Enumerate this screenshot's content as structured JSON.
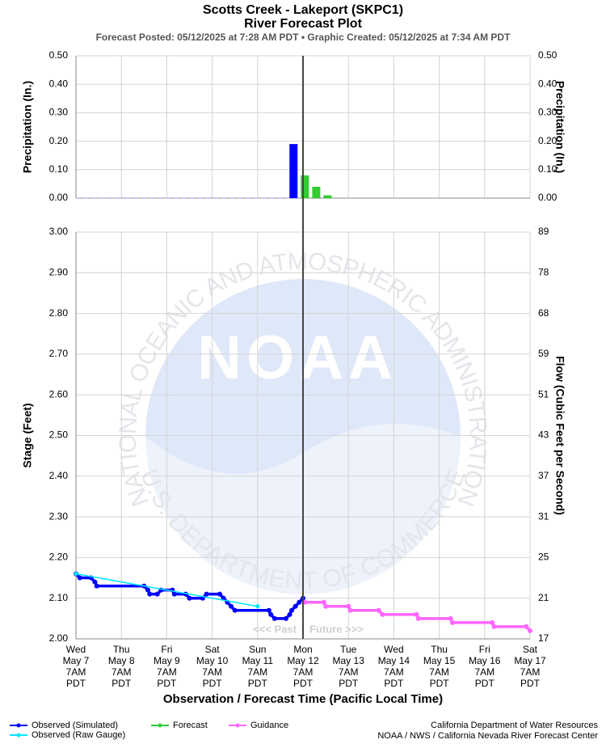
{
  "header": {
    "title": "Scotts Creek - Lakeport (SKPC1)",
    "subtitle": "River Forecast Plot",
    "posted": "Forecast Posted: 05/12/2025 at 7:28 AM PDT  •  Graphic Created: 05/12/2025 at 7:34 AM PDT"
  },
  "watermark": {
    "logo": "NOAA",
    "ring_top": "NATIONAL OCEANIC AND ATMOSPHERIC ADMINISTRATION",
    "ring_bottom": "U.S. DEPARTMENT OF COMMERCE"
  },
  "chart_data": [
    {
      "type": "bar",
      "ylabel": "Precipitation (In.)",
      "y2label": "Precipitation (In.)",
      "xlim": [
        "2025-05-07T07:00",
        "2025-05-17T07:00"
      ],
      "ylim": [
        0,
        0.5
      ],
      "yticks": [
        {
          "value": 0,
          "label": "0.00"
        },
        {
          "value": 0.1,
          "label": "0.10"
        },
        {
          "value": 0.2,
          "label": "0.20"
        },
        {
          "value": 0.3,
          "label": "0.30"
        },
        {
          "value": 0.4,
          "label": "0.40"
        },
        {
          "value": 0.5,
          "label": "0.50"
        }
      ],
      "grid": true,
      "series": [
        {
          "color": "#0000ff",
          "x": [
            "2025-05-12T02:00"
          ],
          "values": [
            0.19
          ]
        },
        {
          "name": "Forecast",
          "color": "#33cc33",
          "x": [
            "2025-05-12T08:00",
            "2025-05-12T14:00",
            "2025-05-12T20:00"
          ],
          "values": [
            0.08,
            0.04,
            0.01
          ]
        }
      ]
    },
    {
      "type": "line",
      "ylabel": "Stage (Feet)",
      "y2label": "Flow (Cubic Feet per Second)",
      "xlabel": "Observation / Forecast Time (Pacific Local Time)",
      "now": "2025-05-12T07:00",
      "past_label": "<<< Past",
      "future_label": "Future >>>",
      "xlim": [
        "2025-05-07T07:00",
        "2025-05-17T07:00"
      ],
      "xticks": [
        {
          "value": "2025-05-07T07:00",
          "label": [
            "Wed",
            "May 7",
            "7AM",
            "PDT"
          ]
        },
        {
          "value": "2025-05-08T07:00",
          "label": [
            "Thu",
            "May 8",
            "7AM",
            "PDT"
          ]
        },
        {
          "value": "2025-05-09T07:00",
          "label": [
            "Fri",
            "May 9",
            "7AM",
            "PDT"
          ]
        },
        {
          "value": "2025-05-10T07:00",
          "label": [
            "Sat",
            "May 10",
            "7AM",
            "PDT"
          ]
        },
        {
          "value": "2025-05-11T07:00",
          "label": [
            "Sun",
            "May 11",
            "7AM",
            "PDT"
          ]
        },
        {
          "value": "2025-05-12T07:00",
          "label": [
            "Mon",
            "May 12",
            "7AM",
            "PDT"
          ]
        },
        {
          "value": "2025-05-13T07:00",
          "label": [
            "Tue",
            "May 13",
            "7AM",
            "PDT"
          ]
        },
        {
          "value": "2025-05-14T07:00",
          "label": [
            "Wed",
            "May 14",
            "7AM",
            "PDT"
          ]
        },
        {
          "value": "2025-05-15T07:00",
          "label": [
            "Thu",
            "May 15",
            "7AM",
            "PDT"
          ]
        },
        {
          "value": "2025-05-16T07:00",
          "label": [
            "Fri",
            "May 16",
            "7AM",
            "PDT"
          ]
        },
        {
          "value": "2025-05-17T07:00",
          "label": [
            "Sat",
            "May 17",
            "7AM",
            "PDT"
          ]
        }
      ],
      "ylim": [
        2,
        3
      ],
      "yticks": [
        {
          "value": 2,
          "label": "2.00"
        },
        {
          "value": 2.1,
          "label": "2.10"
        },
        {
          "value": 2.2,
          "label": "2.20"
        },
        {
          "value": 2.3,
          "label": "2.30"
        },
        {
          "value": 2.4,
          "label": "2.40"
        },
        {
          "value": 2.5,
          "label": "2.50"
        },
        {
          "value": 2.6,
          "label": "2.60"
        },
        {
          "value": 2.7,
          "label": "2.70"
        },
        {
          "value": 2.8,
          "label": "2.80"
        },
        {
          "value": 2.9,
          "label": "2.90"
        },
        {
          "value": 3,
          "label": "3.00"
        }
      ],
      "y2lim": [
        17,
        89
      ],
      "y2ticks": [
        17,
        21,
        25,
        31,
        37,
        43,
        51,
        59,
        68,
        78,
        89
      ],
      "grid": true,
      "series": [
        {
          "name": "Observed (Simulated)",
          "color": "#0000ff",
          "x": [
            "2025-05-07T07:00",
            "2025-05-07T09:00",
            "2025-05-07T15:00",
            "2025-05-07T17:00",
            "2025-05-07T18:00",
            "2025-05-08T19:00",
            "2025-05-08T21:00",
            "2025-05-08T22:00",
            "2025-05-09T02:00",
            "2025-05-09T04:00",
            "2025-05-09T10:00",
            "2025-05-09T11:00",
            "2025-05-09T17:00",
            "2025-05-09T19:00",
            "2025-05-10T02:00",
            "2025-05-10T04:00",
            "2025-05-10T11:00",
            "2025-05-10T13:00",
            "2025-05-10T15:00",
            "2025-05-10T17:00",
            "2025-05-10T19:00",
            "2025-05-11T13:00",
            "2025-05-11T14:00",
            "2025-05-11T16:00",
            "2025-05-11T22:00",
            "2025-05-12T00:00",
            "2025-05-12T01:00",
            "2025-05-12T03:00",
            "2025-05-12T05:00",
            "2025-05-12T07:00"
          ],
          "values": [
            2.16,
            2.15,
            2.15,
            2.14,
            2.13,
            2.13,
            2.12,
            2.11,
            2.11,
            2.12,
            2.12,
            2.11,
            2.11,
            2.1,
            2.1,
            2.11,
            2.11,
            2.1,
            2.09,
            2.08,
            2.07,
            2.07,
            2.06,
            2.05,
            2.05,
            2.06,
            2.07,
            2.08,
            2.09,
            2.1
          ]
        },
        {
          "name": "Observed (Raw Gauge)",
          "color": "#00e5ff",
          "x": [
            "2025-05-07T07:00",
            "2025-05-11T07:00"
          ],
          "values": [
            2.16,
            2.08
          ]
        },
        {
          "name": "Guidance",
          "color": "#ff66ff",
          "x": [
            "2025-05-12T08:00",
            "2025-05-12T18:00",
            "2025-05-12T19:00",
            "2025-05-13T07:00",
            "2025-05-13T08:00",
            "2025-05-13T23:00",
            "2025-05-14T01:00",
            "2025-05-14T19:00",
            "2025-05-14T20:00",
            "2025-05-15T13:00",
            "2025-05-15T14:00",
            "2025-05-16T11:00",
            "2025-05-16T12:00",
            "2025-05-17T05:00",
            "2025-05-17T07:00"
          ],
          "values": [
            2.09,
            2.09,
            2.08,
            2.08,
            2.07,
            2.07,
            2.06,
            2.06,
            2.05,
            2.05,
            2.04,
            2.04,
            2.03,
            2.03,
            2.02
          ]
        }
      ]
    }
  ],
  "credits": [
    "California Department of Water Resources",
    "NOAA / NWS / California Nevada River Forecast Center"
  ]
}
